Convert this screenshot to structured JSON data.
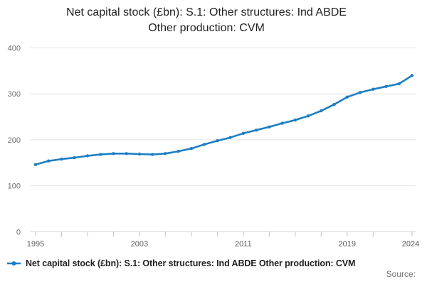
{
  "title": {
    "line1": "Net capital stock (£bn): S.1: Other structures: Ind ABDE",
    "line2": "Other production: CVM"
  },
  "legend": {
    "label": "Net capital stock (£bn): S.1: Other structures: Ind ABDE Other production: CVM"
  },
  "source": {
    "label": "Source:"
  },
  "colors": {
    "line": "#1d7fc4",
    "grid": "#e4e4e4",
    "axis_line": "#d6d6d6",
    "tick": "#b8c4d2",
    "y_label": "#6f6f6f",
    "x_label": "#5a5a5a",
    "title_text": "#222222",
    "legend_text": "#1f1f1f",
    "source_text": "#707070"
  },
  "chart_data": {
    "type": "line",
    "title": "Net capital stock (£bn): S.1: Other structures: Ind ABDE Other production: CVM",
    "xlabel": "",
    "ylabel": "",
    "ylim": [
      0,
      400
    ],
    "xlim": [
      1995,
      2024
    ],
    "grid": "horizontal",
    "legend_position": "bottom-left",
    "marker": "circle",
    "y_ticks": [
      0,
      100,
      200,
      300,
      400
    ],
    "x_tick_years": [
      1995,
      1997,
      1999,
      2001,
      2003,
      2005,
      2007,
      2009,
      2011,
      2013,
      2015,
      2017,
      2019,
      2021,
      2024
    ],
    "x_label_years": [
      1995,
      2003,
      2011,
      2019,
      2024
    ],
    "x": [
      1995,
      1996,
      1997,
      1998,
      1999,
      2000,
      2001,
      2002,
      2003,
      2004,
      2005,
      2006,
      2007,
      2008,
      2009,
      2010,
      2011,
      2012,
      2013,
      2014,
      2015,
      2016,
      2017,
      2018,
      2019,
      2020,
      2021,
      2022,
      2023,
      2024
    ],
    "series": [
      {
        "name": "Net capital stock (£bn): S.1: Other structures: Ind ABDE Other production: CVM",
        "values": [
          146,
          154,
          158,
          161,
          165,
          168,
          170,
          170,
          169,
          168,
          170,
          175,
          181,
          190,
          198,
          205,
          214,
          221,
          228,
          236,
          243,
          252,
          263,
          277,
          293,
          303,
          310,
          316,
          322,
          340
        ]
      }
    ]
  }
}
